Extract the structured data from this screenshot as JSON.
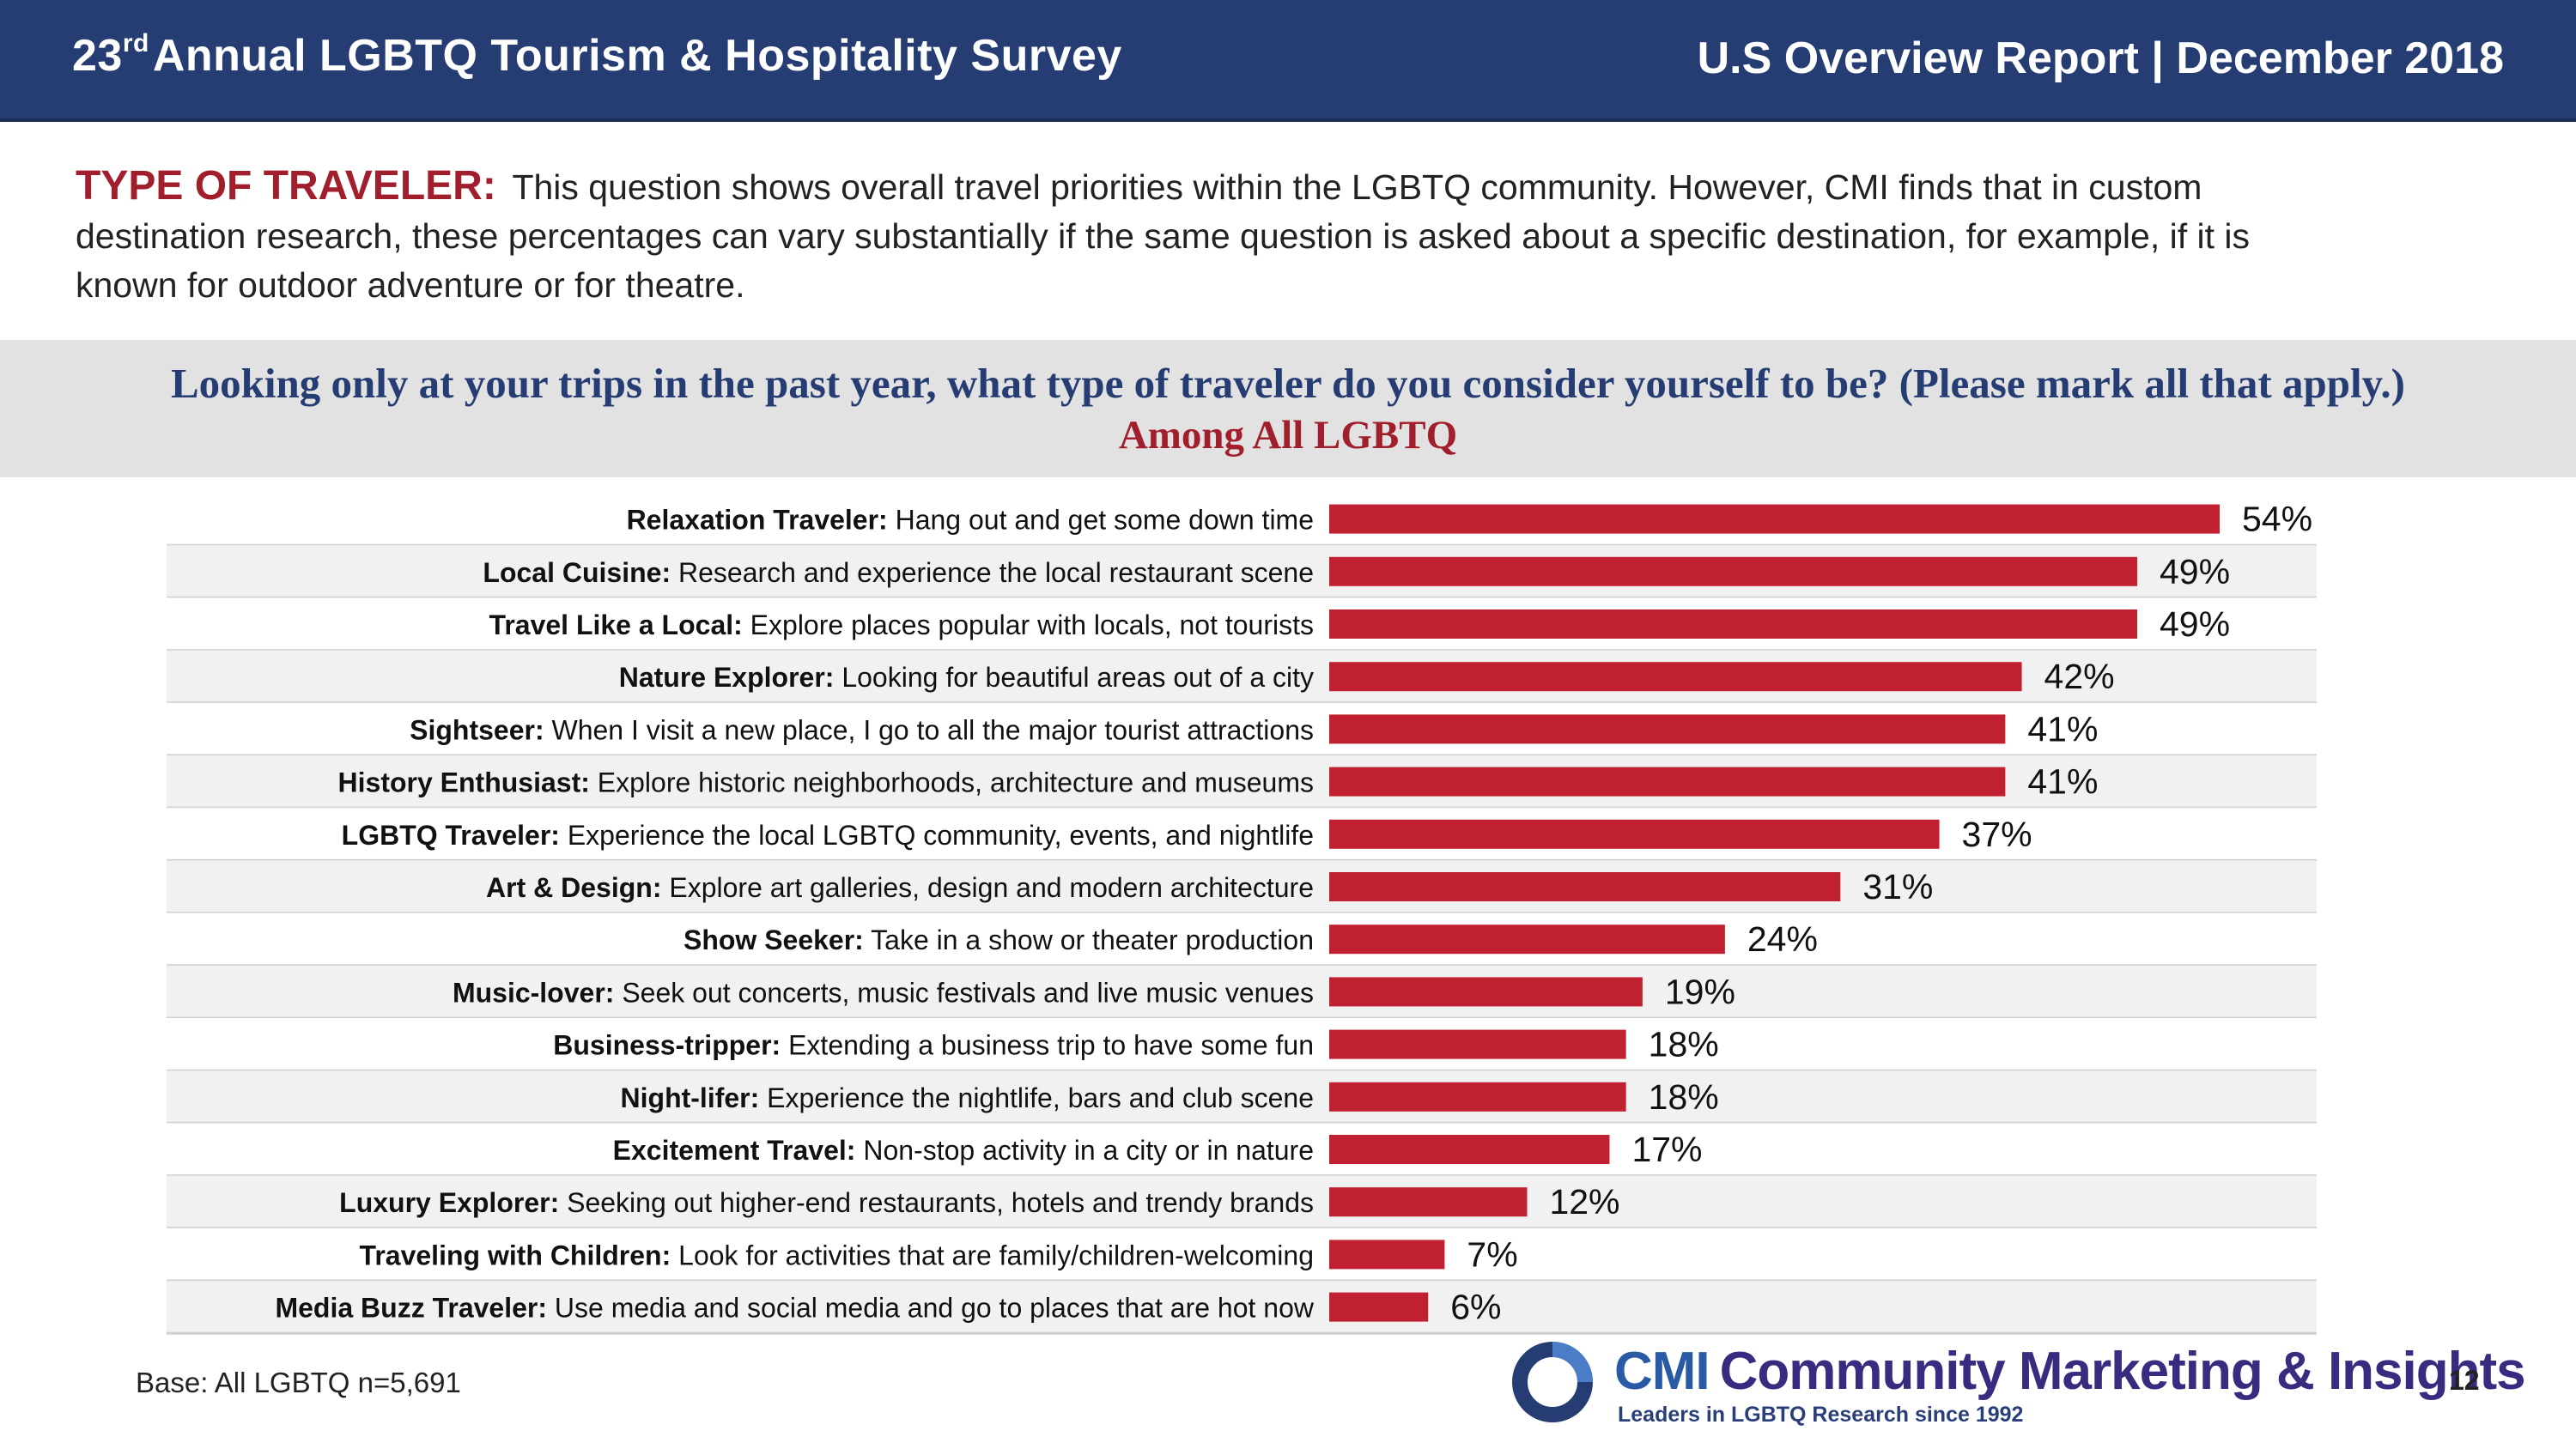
{
  "header": {
    "title_pre": "23",
    "title_sup": "rd",
    "title_post": "Annual LGBTQ Tourism & Hospitality Survey",
    "report": "U.S Overview Report | December 2018"
  },
  "intro": {
    "lead": "TYPE OF TRAVELER:",
    "text": "This question shows overall travel priorities within the LGBTQ community. However, CMI finds that in custom destination research, these percentages can vary substantially if the same question is asked about a specific destination, for example, if it is known for outdoor adventure or for theatre."
  },
  "question": {
    "text": "Looking only at your trips in the past year, what type of traveler do you consider yourself to be?  (Please mark all that apply.)",
    "subtitle": "Among All LGBTQ"
  },
  "chart_data": {
    "type": "bar",
    "orientation": "horizontal",
    "categories": [
      {
        "bold": "Relaxation Traveler:",
        "rest": "Hang out and get some down time"
      },
      {
        "bold": "Local Cuisine:",
        "rest": "Research and experience the local restaurant scene"
      },
      {
        "bold": "Travel Like a Local:",
        "rest": "Explore places popular with locals, not tourists"
      },
      {
        "bold": "Nature Explorer:",
        "rest": "Looking for beautiful areas out of a city"
      },
      {
        "bold": "Sightseer:",
        "rest": " When I visit a new place, I go to all the major tourist attractions"
      },
      {
        "bold": "History Enthusiast:",
        "rest": "Explore historic neighborhoods, architecture and museums"
      },
      {
        "bold": "LGBTQ Traveler:",
        "rest": "Experience the local LGBTQ community, events, and nightlife"
      },
      {
        "bold": "Art & Design:",
        "rest": "Explore art galleries, design and modern architecture"
      },
      {
        "bold": "Show Seeker:",
        "rest": "Take in a show or theater production"
      },
      {
        "bold": "Music-lover:",
        "rest": "Seek out concerts, music festivals and live music venues"
      },
      {
        "bold": "Business-tripper:",
        "rest": "Extending a business trip to have some fun"
      },
      {
        "bold": "Night-lifer:",
        "rest": "Experience the nightlife, bars and club scene"
      },
      {
        "bold": "Excitement Travel:",
        "rest": " Non-stop activity in a city or in nature"
      },
      {
        "bold": "Luxury Explorer:",
        "rest": " Seeking out higher-end restaurants, hotels and trendy brands"
      },
      {
        "bold": "Traveling with Children:",
        "rest": "Look for activities that are family/children-welcoming"
      },
      {
        "bold": "Media Buzz Traveler:",
        "rest": " Use media and social media and go to places that are hot now"
      }
    ],
    "values": [
      54,
      49,
      49,
      42,
      41,
      41,
      37,
      31,
      24,
      19,
      18,
      18,
      17,
      12,
      7,
      6
    ],
    "labels": [
      "54%",
      "49%",
      "49%",
      "42%",
      "41%",
      "41%",
      "37%",
      "31%",
      "24%",
      "19%",
      "18%",
      "18%",
      "17%",
      "12%",
      "7%",
      "6%"
    ],
    "bar_color": "#c0202f",
    "row_colors": [
      "#ffffff",
      "#f1f1f1"
    ],
    "grid": false
  },
  "footer": {
    "base": "Base: All LGBTQ n=5,691",
    "logo_cmi": "CMI",
    "logo_name": "Community Marketing & Insights",
    "logo_tagline": "Leaders in LGBTQ Research since 1992",
    "page": "12"
  }
}
